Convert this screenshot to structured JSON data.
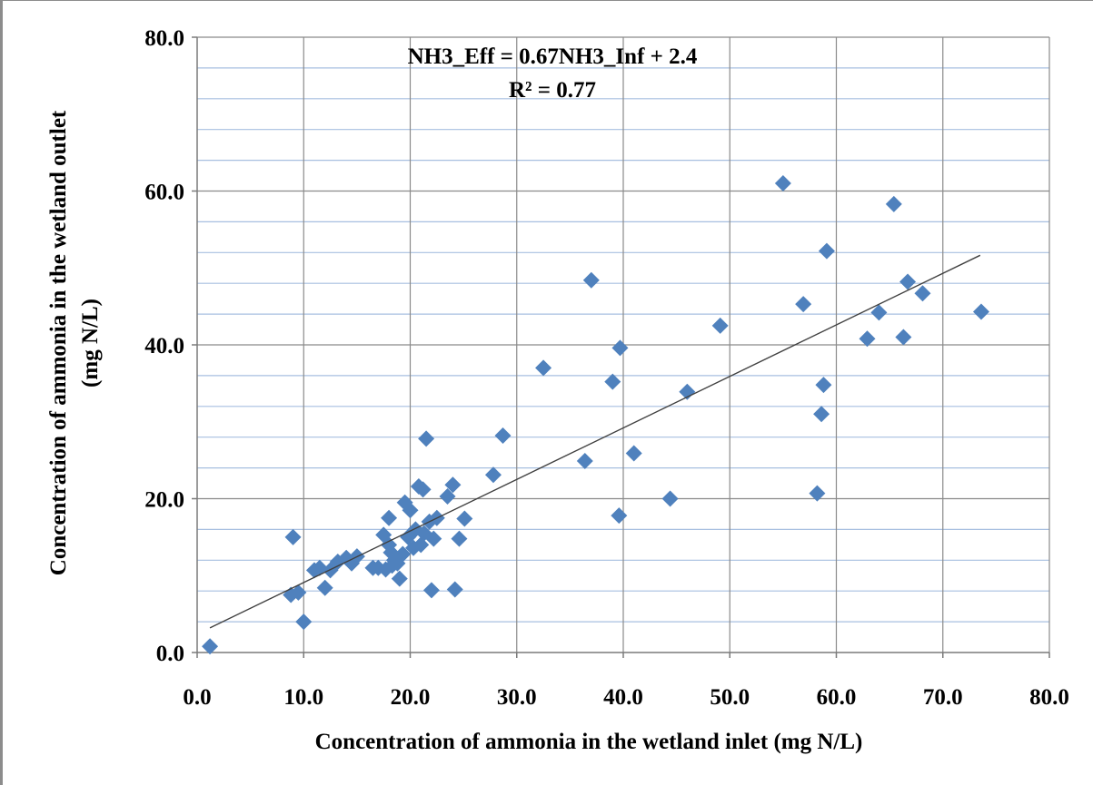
{
  "chart_data": {
    "type": "scatter",
    "title": "",
    "xlabel": "Concentration of ammonia in the wetland inlet (mg N/L)",
    "ylabel_line1": "Concentration of ammonia in the wetland outlet",
    "ylabel_line2": "(mg N/L)",
    "xlim": [
      0,
      80
    ],
    "ylim": [
      0,
      80
    ],
    "x_ticks": [
      "0.0",
      "10.0",
      "20.0",
      "30.0",
      "40.0",
      "50.0",
      "60.0",
      "70.0",
      "80.0"
    ],
    "y_ticks": [
      "0.0",
      "20.0",
      "40.0",
      "60.0",
      "80.0"
    ],
    "grid": true,
    "marker": "diamond",
    "marker_color": "#4f81bd",
    "trendline": {
      "slope": 0.67,
      "intercept": 2.4,
      "x_range": [
        1.2,
        73.5
      ],
      "color": "#404040",
      "equation_label": "NH3_Eff = 0.67NH3_Inf + 2.4",
      "r2_label": "R² = 0.77"
    },
    "series": [
      {
        "points": [
          [
            1.2,
            0.8
          ],
          [
            9.0,
            15.0
          ],
          [
            8.8,
            7.5
          ],
          [
            9.5,
            7.8
          ],
          [
            10.0,
            4.0
          ],
          [
            11.0,
            10.7
          ],
          [
            11.5,
            11.0
          ],
          [
            12.0,
            8.4
          ],
          [
            12.5,
            10.7
          ],
          [
            13.2,
            11.8
          ],
          [
            14.0,
            12.3
          ],
          [
            14.5,
            11.6
          ],
          [
            15.0,
            12.5
          ],
          [
            16.5,
            11.0
          ],
          [
            17.0,
            11.0
          ],
          [
            17.5,
            15.3
          ],
          [
            17.7,
            10.8
          ],
          [
            18.0,
            14.0
          ],
          [
            18.0,
            17.5
          ],
          [
            18.2,
            13.0
          ],
          [
            18.3,
            11.3
          ],
          [
            18.5,
            12.0
          ],
          [
            18.8,
            11.6
          ],
          [
            19.0,
            9.6
          ],
          [
            19.3,
            12.8
          ],
          [
            19.5,
            19.5
          ],
          [
            19.8,
            15.0
          ],
          [
            20.0,
            18.5
          ],
          [
            20.3,
            13.6
          ],
          [
            20.5,
            16.0
          ],
          [
            20.8,
            21.6
          ],
          [
            21.0,
            14.0
          ],
          [
            21.2,
            21.2
          ],
          [
            21.3,
            15.5
          ],
          [
            21.5,
            27.8
          ],
          [
            21.8,
            17.0
          ],
          [
            22.0,
            8.1
          ],
          [
            22.2,
            14.8
          ],
          [
            22.5,
            17.5
          ],
          [
            23.5,
            20.3
          ],
          [
            24.0,
            21.8
          ],
          [
            24.2,
            8.2
          ],
          [
            24.6,
            14.8
          ],
          [
            25.1,
            17.4
          ],
          [
            27.8,
            23.1
          ],
          [
            28.7,
            28.2
          ],
          [
            32.5,
            37.0
          ],
          [
            36.4,
            24.9
          ],
          [
            37.0,
            48.4
          ],
          [
            39.0,
            35.2
          ],
          [
            39.6,
            17.8
          ],
          [
            39.7,
            39.6
          ],
          [
            41.0,
            25.9
          ],
          [
            44.4,
            20.0
          ],
          [
            46.0,
            33.9
          ],
          [
            49.1,
            42.5
          ],
          [
            55.0,
            61.0
          ],
          [
            56.9,
            45.3
          ],
          [
            58.2,
            20.7
          ],
          [
            58.6,
            31.0
          ],
          [
            58.8,
            34.8
          ],
          [
            59.1,
            52.2
          ],
          [
            62.9,
            40.8
          ],
          [
            64.0,
            44.2
          ],
          [
            65.4,
            58.3
          ],
          [
            66.3,
            41.0
          ],
          [
            66.7,
            48.2
          ],
          [
            68.1,
            46.7
          ],
          [
            73.6,
            44.3
          ]
        ]
      }
    ]
  }
}
